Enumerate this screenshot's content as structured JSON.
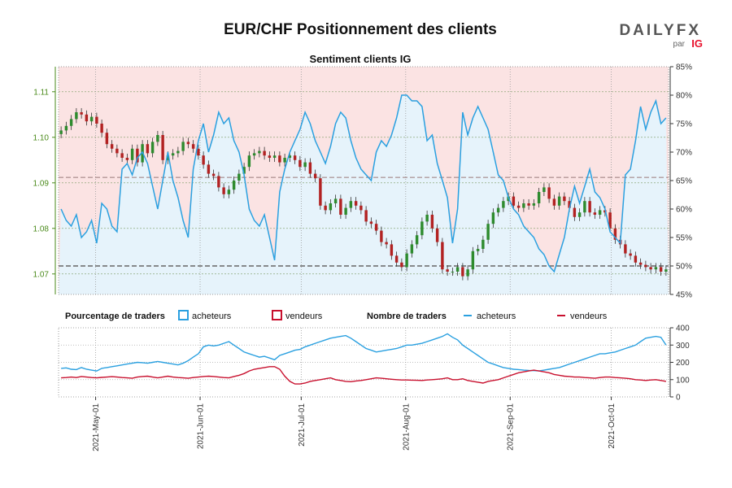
{
  "header": {
    "title": "EUR/CHF Positionnement des clients",
    "subtitle": "Sentiment clients IG",
    "brand_main": "DAILYFX",
    "brand_sub": "par",
    "brand_ig": "IG"
  },
  "legend": {
    "pct_title": "Pourcentage de traders",
    "pct_buyers": "acheteurs",
    "pct_sellers": "vendeurs",
    "count_title": "Nombre de traders",
    "count_buyers": "acheteurs",
    "count_sellers": "vendeurs"
  },
  "colors": {
    "buyers": "#2aa0e0",
    "sellers": "#c8102e",
    "long_fill": "#e6f3fb",
    "short_fill": "#fbe3e3",
    "up_candle": "#2e8b2e",
    "down_candle": "#b22222",
    "price_axis": "#4a8a1a",
    "brand_ig": "#e8112d"
  },
  "chart_data": [
    {
      "type": "candlestick",
      "title": "Sentiment clients IG",
      "x_ticks": [
        "2021-May-01",
        "2021-Jun-01",
        "2021-Jul-01",
        "2021-Aug-01",
        "2021-Sep-01",
        "2021-Oct-01"
      ],
      "x_range": [
        "2021-04-20",
        "2021-10-18"
      ],
      "price_axis": {
        "ticks": [
          1.07,
          1.08,
          1.09,
          1.1,
          1.11
        ],
        "range": [
          1.0655,
          1.1155
        ]
      },
      "pct_axis": {
        "ticks": [
          "45%",
          "50%",
          "55%",
          "60%",
          "65%",
          "70%",
          "75%",
          "80%",
          "85%"
        ],
        "range": [
          45,
          85
        ]
      },
      "reference_lines": {
        "long_pct_level": 50,
        "price_level": 1.0912
      },
      "close": [
        1.1015,
        1.1025,
        1.104,
        1.1055,
        1.105,
        1.1035,
        1.1045,
        1.103,
        1.101,
        1.0985,
        1.0975,
        1.0965,
        1.0955,
        1.095,
        1.0975,
        1.0945,
        1.0985,
        1.0965,
        1.099,
        1.1005,
        1.095,
        1.096,
        1.0965,
        1.097,
        1.099,
        1.0985,
        1.0975,
        1.096,
        1.094,
        1.092,
        1.0915,
        1.089,
        1.0875,
        1.0885,
        1.0905,
        1.092,
        1.0935,
        1.096,
        1.0965,
        1.097,
        1.096,
        1.0955,
        1.096,
        1.0945,
        1.0955,
        1.096,
        1.095,
        1.0935,
        1.0945,
        1.092,
        1.091,
        1.085,
        1.084,
        1.0855,
        1.0865,
        1.083,
        1.0845,
        1.086,
        1.085,
        1.084,
        1.0815,
        1.081,
        1.0795,
        1.077,
        1.0765,
        1.074,
        1.0725,
        1.0715,
        1.0745,
        1.0765,
        1.0785,
        1.0815,
        1.083,
        1.08,
        1.077,
        1.071,
        1.0705,
        1.0705,
        1.0715,
        1.0695,
        1.071,
        1.075,
        1.0755,
        1.0775,
        1.081,
        1.0835,
        1.0845,
        1.086,
        1.087,
        1.085,
        1.0845,
        1.0855,
        1.085,
        1.0855,
        1.088,
        1.089,
        1.0865,
        1.085,
        1.087,
        1.086,
        1.0845,
        1.0825,
        1.0835,
        1.086,
        1.0835,
        1.083,
        1.084,
        1.0835,
        1.08,
        1.0775,
        1.0765,
        1.0745,
        1.074,
        1.0725,
        1.072,
        1.0715,
        1.071,
        1.0715,
        1.0705,
        1.071
      ],
      "series": [
        {
          "name": "acheteurs",
          "unit": "%",
          "values": [
            60,
            58,
            57,
            59,
            55,
            56,
            58,
            54,
            61,
            60,
            57,
            56,
            67,
            68,
            66,
            69,
            70,
            68,
            64,
            60,
            65,
            70,
            65,
            62,
            58,
            55,
            67,
            72,
            75,
            70,
            73,
            77,
            75,
            76,
            72,
            70,
            66,
            60,
            58,
            57,
            59,
            55,
            51,
            63,
            67,
            70,
            72,
            74,
            77,
            75,
            72,
            70,
            68,
            71,
            75,
            77,
            76,
            72,
            69,
            67,
            66,
            65,
            70,
            72,
            71,
            73,
            76,
            80,
            80,
            79,
            79,
            78,
            72,
            73,
            68,
            65,
            62,
            54,
            60,
            77,
            73,
            76,
            78,
            76,
            74,
            70,
            66,
            65,
            62,
            60,
            59,
            57,
            56,
            55,
            53,
            52,
            50,
            49,
            52,
            55,
            60,
            64,
            61,
            64,
            67,
            63,
            62,
            60,
            56,
            55,
            54,
            66,
            67,
            72,
            78,
            74,
            77,
            79,
            75,
            76
          ]
        },
        {
          "name": "vendeurs",
          "unit": "%",
          "values": [
            40,
            42,
            43,
            41,
            45,
            44,
            42,
            46,
            39,
            40,
            43,
            44,
            33,
            32,
            34,
            31,
            30,
            32,
            36,
            40,
            35,
            30,
            35,
            38,
            42,
            45,
            33,
            28,
            25,
            30,
            27,
            23,
            25,
            24,
            28,
            30,
            34,
            40,
            42,
            43,
            41,
            45,
            49,
            37,
            33,
            30,
            28,
            26,
            23,
            25,
            28,
            30,
            32,
            29,
            25,
            23,
            24,
            28,
            31,
            33,
            34,
            35,
            30,
            28,
            29,
            27,
            24,
            20,
            20,
            21,
            21,
            22,
            28,
            27,
            32,
            35,
            38,
            46,
            40,
            23,
            27,
            24,
            22,
            24,
            26,
            30,
            34,
            35,
            38,
            40,
            41,
            43,
            44,
            45,
            47,
            48,
            50,
            51,
            48,
            45,
            40,
            36,
            39,
            36,
            33,
            37,
            38,
            40,
            44,
            45,
            46,
            34,
            33,
            28,
            22,
            26,
            23,
            21,
            25,
            24
          ]
        }
      ]
    },
    {
      "type": "line",
      "title": "Nombre de traders",
      "x_ticks": [
        "2021-May-01",
        "2021-Jun-01",
        "2021-Jul-01",
        "2021-Aug-01",
        "2021-Sep-01",
        "2021-Oct-01"
      ],
      "y_axis": {
        "ticks": [
          0,
          100,
          200,
          300,
          400
        ],
        "range": [
          0,
          400
        ]
      },
      "series": [
        {
          "name": "acheteurs",
          "values": [
            165,
            168,
            160,
            158,
            170,
            160,
            155,
            150,
            165,
            170,
            175,
            180,
            185,
            190,
            195,
            200,
            198,
            195,
            200,
            205,
            200,
            195,
            190,
            185,
            195,
            210,
            230,
            250,
            290,
            300,
            295,
            300,
            310,
            320,
            300,
            280,
            260,
            250,
            240,
            230,
            235,
            225,
            215,
            240,
            250,
            260,
            270,
            275,
            290,
            300,
            310,
            320,
            330,
            340,
            345,
            350,
            355,
            340,
            320,
            300,
            280,
            270,
            260,
            265,
            270,
            275,
            280,
            290,
            300,
            300,
            305,
            310,
            320,
            330,
            340,
            350,
            365,
            345,
            330,
            300,
            280,
            260,
            240,
            220,
            200,
            190,
            180,
            170,
            165,
            160,
            158,
            155,
            153,
            152,
            150,
            155,
            160,
            165,
            170,
            180,
            190,
            200,
            210,
            220,
            230,
            240,
            250,
            250,
            255,
            260,
            270,
            280,
            290,
            300,
            320,
            340,
            345,
            350,
            345,
            300
          ]
        },
        {
          "name": "vendeurs",
          "values": [
            110,
            112,
            115,
            112,
            118,
            115,
            112,
            110,
            113,
            115,
            117,
            115,
            112,
            110,
            108,
            115,
            118,
            120,
            115,
            110,
            115,
            120,
            115,
            112,
            110,
            108,
            112,
            115,
            118,
            120,
            118,
            115,
            112,
            110,
            118,
            125,
            135,
            150,
            160,
            165,
            170,
            175,
            175,
            160,
            120,
            90,
            75,
            75,
            80,
            90,
            95,
            100,
            105,
            110,
            100,
            95,
            90,
            88,
            92,
            95,
            100,
            105,
            110,
            108,
            105,
            102,
            100,
            98,
            98,
            97,
            96,
            95,
            98,
            100,
            102,
            105,
            110,
            100,
            100,
            105,
            95,
            90,
            85,
            80,
            90,
            95,
            100,
            110,
            120,
            130,
            140,
            145,
            150,
            155,
            150,
            145,
            140,
            130,
            125,
            120,
            118,
            115,
            115,
            112,
            110,
            108,
            112,
            115,
            115,
            112,
            110,
            108,
            105,
            100,
            98,
            95,
            98,
            100,
            95,
            90
          ]
        }
      ]
    }
  ]
}
